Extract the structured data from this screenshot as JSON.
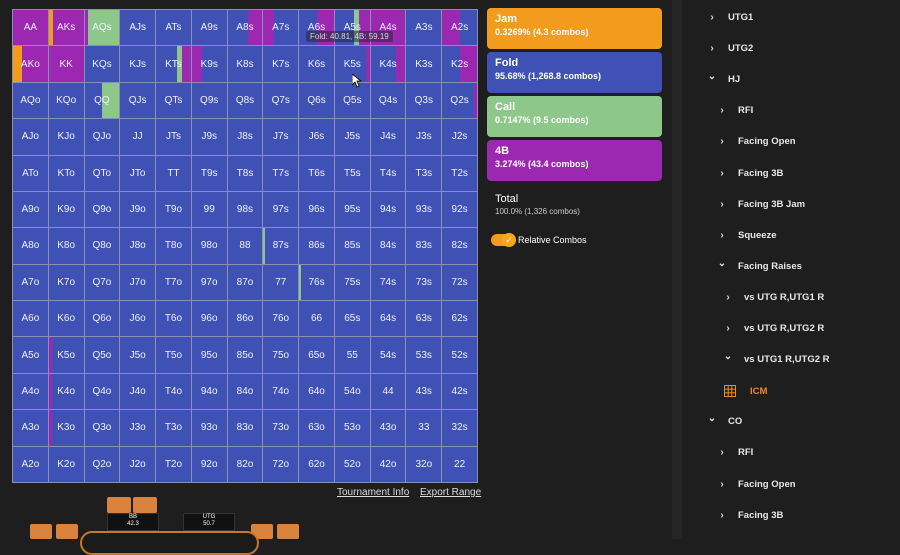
{
  "colors": {
    "jam": "#f29b1d",
    "fold": "#3f51b5",
    "call": "#8dc88a",
    "four_bet": "#9c27b0",
    "accent": "#f08a24"
  },
  "grid": {
    "rows": [
      [
        "AA",
        "AKs",
        "AQs",
        "AJs",
        "ATs",
        "A9s",
        "A8s",
        "A7s",
        "A6s",
        "A5s",
        "A4s",
        "A3s",
        "A2s"
      ],
      [
        "AKo",
        "KK",
        "KQs",
        "KJs",
        "KTs",
        "K9s",
        "K8s",
        "K7s",
        "K6s",
        "K5s",
        "K4s",
        "K3s",
        "K2s"
      ],
      [
        "AQo",
        "KQo",
        "QQ",
        "QJs",
        "QTs",
        "Q9s",
        "Q8s",
        "Q7s",
        "Q6s",
        "Q5s",
        "Q4s",
        "Q3s",
        "Q2s"
      ],
      [
        "AJo",
        "KJo",
        "QJo",
        "JJ",
        "JTs",
        "J9s",
        "J8s",
        "J7s",
        "J6s",
        "J5s",
        "J4s",
        "J3s",
        "J2s"
      ],
      [
        "ATo",
        "KTo",
        "QTo",
        "JTo",
        "TT",
        "T9s",
        "T8s",
        "T7s",
        "T6s",
        "T5s",
        "T4s",
        "T3s",
        "T2s"
      ],
      [
        "A9o",
        "K9o",
        "Q9o",
        "J9o",
        "T9o",
        "99",
        "98s",
        "97s",
        "96s",
        "95s",
        "94s",
        "93s",
        "92s"
      ],
      [
        "A8o",
        "K8o",
        "Q8o",
        "J8o",
        "T8o",
        "98o",
        "88",
        "87s",
        "86s",
        "85s",
        "84s",
        "83s",
        "82s"
      ],
      [
        "A7o",
        "K7o",
        "Q7o",
        "J7o",
        "T7o",
        "97o",
        "87o",
        "77",
        "76s",
        "75s",
        "74s",
        "73s",
        "72s"
      ],
      [
        "A6o",
        "K6o",
        "Q6o",
        "J6o",
        "T6o",
        "96o",
        "86o",
        "76o",
        "66",
        "65s",
        "64s",
        "63s",
        "62s"
      ],
      [
        "A5o",
        "K5o",
        "Q5o",
        "J5o",
        "T5o",
        "95o",
        "85o",
        "75o",
        "65o",
        "55",
        "54s",
        "53s",
        "52s"
      ],
      [
        "A4o",
        "K4o",
        "Q4o",
        "J4o",
        "T4o",
        "94o",
        "84o",
        "74o",
        "64o",
        "54o",
        "44",
        "43s",
        "42s"
      ],
      [
        "A3o",
        "K3o",
        "Q3o",
        "J3o",
        "T3o",
        "93o",
        "83o",
        "73o",
        "63o",
        "53o",
        "43o",
        "33",
        "32s"
      ],
      [
        "A2o",
        "K2o",
        "Q2o",
        "J2o",
        "T2o",
        "92o",
        "82o",
        "72o",
        "62o",
        "52o",
        "42o",
        "32o",
        "22"
      ]
    ],
    "mixes": {
      "AA": [
        [
          "four_bet",
          1.0
        ]
      ],
      "AKs": [
        [
          "jam",
          0.12
        ],
        [
          "four_bet",
          0.88
        ]
      ],
      "AQs": [
        [
          "four_bet",
          0.1
        ],
        [
          "call",
          0.9
        ]
      ],
      "A8s": [
        [
          "fold",
          0.6
        ],
        [
          "four_bet",
          0.4
        ]
      ],
      "A7s": [
        [
          "four_bet",
          0.3
        ],
        [
          "fold",
          0.7
        ]
      ],
      "A6s": [
        [
          "fold",
          0.5
        ],
        [
          "four_bet",
          0.5
        ]
      ],
      "A5s": [
        [
          "fold",
          0.55
        ],
        [
          "call",
          0.15
        ],
        [
          "four_bet",
          0.3
        ]
      ],
      "A4s": [
        [
          "four_bet",
          1.0
        ]
      ],
      "A3s": [
        [
          "fold",
          1.0
        ]
      ],
      "A2s": [
        [
          "four_bet",
          0.5
        ],
        [
          "fold",
          0.5
        ]
      ],
      "AKo": [
        [
          "jam",
          0.25
        ],
        [
          "four_bet",
          0.75
        ]
      ],
      "KK": [
        [
          "four_bet",
          1.0
        ]
      ],
      "KTs": [
        [
          "fold",
          0.6
        ],
        [
          "call",
          0.15
        ],
        [
          "four_bet",
          0.25
        ]
      ],
      "K9s": [
        [
          "four_bet",
          0.3
        ],
        [
          "fold",
          0.7
        ]
      ],
      "K5s": [
        [
          "fold",
          0.9
        ],
        [
          "four_bet",
          0.1
        ]
      ],
      "K4s": [
        [
          "fold",
          0.72
        ],
        [
          "four_bet",
          0.28
        ]
      ],
      "K2s": [
        [
          "fold",
          0.5
        ],
        [
          "four_bet",
          0.5
        ]
      ],
      "QQ": [
        [
          "fold",
          0.5
        ],
        [
          "call",
          0.5
        ]
      ],
      "K5o": [
        [
          "four_bet",
          0.1
        ],
        [
          "fold",
          0.9
        ]
      ],
      "K4o": [
        [
          "four_bet",
          0.1
        ],
        [
          "fold",
          0.9
        ]
      ],
      "K3o": [
        [
          "four_bet",
          0.1
        ],
        [
          "fold",
          0.9
        ]
      ],
      "Q2s": [
        [
          "fold",
          0.92
        ],
        [
          "four_bet",
          0.08
        ]
      ],
      "87s": [
        [
          "call",
          0.06
        ],
        [
          "fold",
          0.94
        ]
      ],
      "76s": [
        [
          "call",
          0.06
        ],
        [
          "fold",
          0.94
        ]
      ],
      "J2s": [
        [
          "fold",
          1.0
        ]
      ]
    }
  },
  "tooltip": "Fold: 40.81, 4B: 59.19",
  "links": {
    "tournament_info": "Tournament Info",
    "export_range": "Export Range"
  },
  "legend": [
    {
      "key": "jam",
      "title": "Jam",
      "stat": "0.3269% (4.3 combos)"
    },
    {
      "key": "fold",
      "title": "Fold",
      "stat": "95.68% (1,268.8 combos)"
    },
    {
      "key": "call",
      "title": "Call",
      "stat": "0.7147% (9.5 combos)"
    },
    {
      "key": "four_bet",
      "title": "4B",
      "stat": "3.274% (43.4 combos)"
    }
  ],
  "total": {
    "label": "Total",
    "value": "100.0% (1,326 combos)"
  },
  "relative_combos": {
    "label": "Relative Combos",
    "enabled": true
  },
  "tree": [
    {
      "label": "UTG1",
      "depth": 0,
      "state": "collapsed",
      "icon": "chevron-right-icon"
    },
    {
      "label": "UTG2",
      "depth": 0,
      "state": "collapsed",
      "icon": "chevron-right-icon"
    },
    {
      "label": "HJ",
      "depth": 0,
      "state": "expanded",
      "icon": "chevron-down-icon"
    },
    {
      "label": "RFI",
      "depth": 1,
      "state": "collapsed",
      "icon": "chevron-right-icon"
    },
    {
      "label": "Facing Open",
      "depth": 1,
      "state": "collapsed",
      "icon": "chevron-right-icon"
    },
    {
      "label": "Facing 3B",
      "depth": 1,
      "state": "collapsed",
      "icon": "chevron-right-icon"
    },
    {
      "label": "Facing 3B Jam",
      "depth": 1,
      "state": "collapsed",
      "icon": "chevron-right-icon"
    },
    {
      "label": "Squeeze",
      "depth": 1,
      "state": "collapsed",
      "icon": "chevron-right-icon"
    },
    {
      "label": "Facing Raises",
      "depth": 1,
      "state": "expanded",
      "icon": "chevron-down-icon"
    },
    {
      "label": "vs UTG R,UTG1 R",
      "depth": 2,
      "state": "collapsed",
      "icon": "chevron-right-icon"
    },
    {
      "label": "vs UTG R,UTG2 R",
      "depth": 2,
      "state": "collapsed",
      "icon": "chevron-right-icon"
    },
    {
      "label": "vs UTG1 R,UTG2 R",
      "depth": 2,
      "state": "expanded",
      "icon": "chevron-down-icon"
    },
    {
      "label": "ICM",
      "depth": 3,
      "state": "selected",
      "icon": "grid-icon"
    },
    {
      "label": "CO",
      "depth": 0,
      "state": "expanded",
      "icon": "chevron-down-icon"
    },
    {
      "label": "RFI",
      "depth": 1,
      "state": "collapsed",
      "icon": "chevron-right-icon"
    },
    {
      "label": "Facing Open",
      "depth": 1,
      "state": "collapsed",
      "icon": "chevron-right-icon"
    },
    {
      "label": "Facing 3B",
      "depth": 1,
      "state": "collapsed",
      "icon": "chevron-right-icon"
    }
  ],
  "table": {
    "seats": [
      {
        "name": "BB",
        "stack": "42.3"
      },
      {
        "name": "UTG",
        "stack": "50.7"
      }
    ]
  }
}
